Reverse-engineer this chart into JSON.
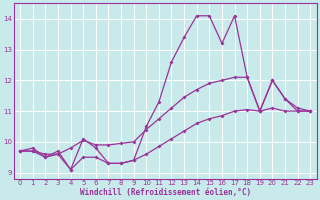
{
  "xlabel": "Windchill (Refroidissement éolien,°C)",
  "x": [
    0,
    1,
    2,
    3,
    4,
    5,
    6,
    7,
    8,
    9,
    10,
    11,
    12,
    13,
    14,
    15,
    16,
    17,
    18,
    19,
    20,
    21,
    22,
    23
  ],
  "y_main": [
    9.7,
    9.8,
    9.5,
    9.7,
    9.1,
    10.1,
    9.8,
    9.3,
    9.3,
    9.4,
    10.5,
    11.3,
    12.6,
    13.4,
    14.1,
    14.1,
    13.2,
    14.1,
    12.1,
    11.0,
    12.0,
    11.4,
    11.0,
    11.0
  ],
  "y_upper": [
    9.7,
    9.7,
    9.6,
    9.6,
    9.8,
    10.05,
    9.9,
    9.9,
    9.95,
    10.0,
    10.4,
    10.75,
    11.1,
    11.45,
    11.7,
    11.9,
    12.0,
    12.1,
    12.1,
    11.0,
    12.0,
    11.4,
    11.1,
    11.0
  ],
  "y_lower": [
    9.7,
    9.7,
    9.5,
    9.6,
    9.1,
    9.5,
    9.5,
    9.3,
    9.3,
    9.4,
    9.6,
    9.85,
    10.1,
    10.35,
    10.6,
    10.75,
    10.85,
    11.0,
    11.05,
    11.0,
    11.1,
    11.0,
    11.0,
    11.0
  ],
  "line_color": "#993399",
  "bg_color": "#c8eaea",
  "grid_color": "#aacccc",
  "ylim": [
    8.8,
    14.5
  ],
  "yticks": [
    9,
    10,
    11,
    12,
    13,
    14
  ],
  "xlim": [
    -0.5,
    23.5
  ]
}
